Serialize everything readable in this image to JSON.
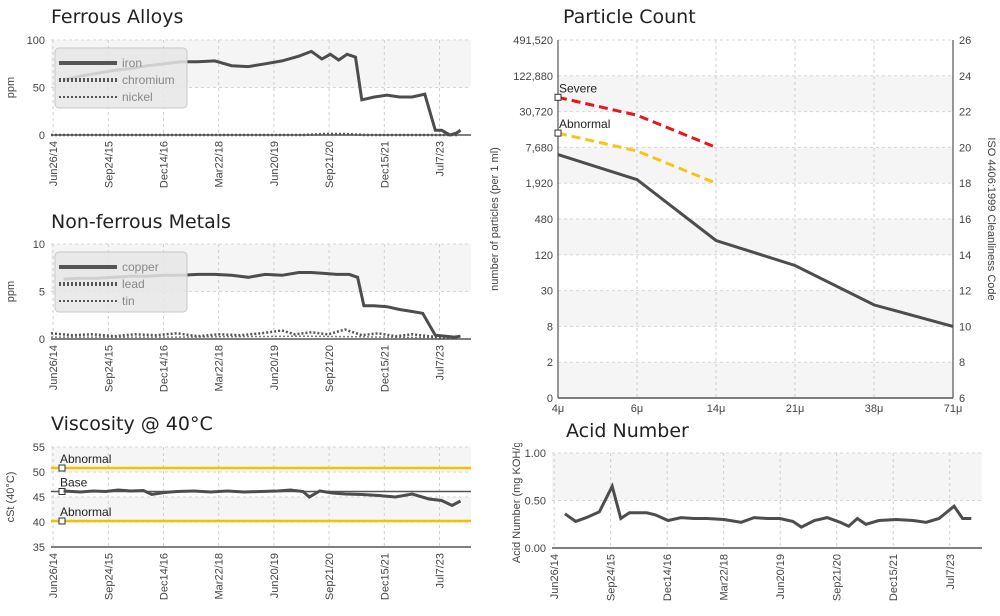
{
  "x_dates": [
    "Jun26/14",
    "Sep24/15",
    "Dec14/16",
    "Mar22/18",
    "Jun20/19",
    "Sep21/20",
    "Dec15/21",
    "Jul7/23"
  ],
  "chart_data": [
    {
      "type": "line",
      "title": "Ferrous Alloys",
      "ylabel": "ppm",
      "ylim": [
        0,
        100
      ],
      "yticks": [
        "0",
        "50",
        "100"
      ],
      "legend": "top-left",
      "series": [
        {
          "name": "iron",
          "values": [
            [
              0.03,
              58
            ],
            [
              0.07,
              62
            ],
            [
              0.11,
              65
            ],
            [
              0.15,
              68
            ],
            [
              0.19,
              70
            ],
            [
              0.23,
              73
            ],
            [
              0.27,
              75
            ],
            [
              0.31,
              77
            ],
            [
              0.35,
              77
            ],
            [
              0.39,
              78
            ],
            [
              0.43,
              73
            ],
            [
              0.47,
              72
            ],
            [
              0.51,
              75
            ],
            [
              0.55,
              78
            ],
            [
              0.59,
              83
            ],
            [
              0.62,
              88
            ],
            [
              0.645,
              80
            ],
            [
              0.665,
              85
            ],
            [
              0.685,
              79
            ],
            [
              0.705,
              85
            ],
            [
              0.725,
              82
            ],
            [
              0.74,
              37
            ],
            [
              0.77,
              40
            ],
            [
              0.8,
              42
            ],
            [
              0.83,
              40
            ],
            [
              0.86,
              40
            ],
            [
              0.89,
              43
            ],
            [
              0.915,
              5
            ],
            [
              0.93,
              5
            ],
            [
              0.95,
              0
            ],
            [
              0.965,
              2
            ],
            [
              0.975,
              5
            ]
          ]
        },
        {
          "name": "chromium",
          "values": [
            [
              0.0,
              0
            ],
            [
              0.6,
              0
            ],
            [
              0.65,
              1
            ],
            [
              0.7,
              1
            ],
            [
              0.75,
              0
            ],
            [
              0.97,
              0
            ]
          ]
        },
        {
          "name": "nickel",
          "values": [
            [
              0.0,
              0
            ],
            [
              0.97,
              0
            ]
          ]
        }
      ]
    },
    {
      "type": "line",
      "title": "Non-ferrous Metals",
      "ylabel": "ppm",
      "ylim": [
        0,
        10
      ],
      "yticks": [
        "0",
        "5",
        "10"
      ],
      "legend": "top-left",
      "series": [
        {
          "name": "copper",
          "values": [
            [
              0.03,
              6.3
            ],
            [
              0.07,
              6.4
            ],
            [
              0.11,
              6.4
            ],
            [
              0.15,
              6.5
            ],
            [
              0.19,
              6.6
            ],
            [
              0.23,
              6.6
            ],
            [
              0.27,
              6.7
            ],
            [
              0.31,
              6.7
            ],
            [
              0.35,
              6.8
            ],
            [
              0.39,
              6.8
            ],
            [
              0.43,
              6.7
            ],
            [
              0.47,
              6.5
            ],
            [
              0.51,
              6.8
            ],
            [
              0.55,
              6.7
            ],
            [
              0.59,
              7.0
            ],
            [
              0.62,
              7.0
            ],
            [
              0.65,
              6.9
            ],
            [
              0.68,
              6.8
            ],
            [
              0.71,
              6.8
            ],
            [
              0.73,
              6.5
            ],
            [
              0.745,
              3.5
            ],
            [
              0.77,
              3.5
            ],
            [
              0.8,
              3.4
            ],
            [
              0.83,
              3.1
            ],
            [
              0.86,
              2.9
            ],
            [
              0.885,
              2.7
            ],
            [
              0.915,
              0.4
            ],
            [
              0.94,
              0.3
            ],
            [
              0.96,
              0.2
            ],
            [
              0.975,
              0.3
            ]
          ]
        },
        {
          "name": "lead",
          "values": [
            [
              0.0,
              0.6
            ],
            [
              0.05,
              0.4
            ],
            [
              0.1,
              0.5
            ],
            [
              0.15,
              0.3
            ],
            [
              0.2,
              0.5
            ],
            [
              0.25,
              0.4
            ],
            [
              0.3,
              0.6
            ],
            [
              0.35,
              0.3
            ],
            [
              0.4,
              0.5
            ],
            [
              0.45,
              0.4
            ],
            [
              0.5,
              0.6
            ],
            [
              0.55,
              0.9
            ],
            [
              0.58,
              0.5
            ],
            [
              0.62,
              0.7
            ],
            [
              0.66,
              0.5
            ],
            [
              0.7,
              1.0
            ],
            [
              0.74,
              0.4
            ],
            [
              0.78,
              0.6
            ],
            [
              0.82,
              0.3
            ],
            [
              0.86,
              0.5
            ],
            [
              0.9,
              0.3
            ],
            [
              0.94,
              0.1
            ],
            [
              0.97,
              0.2
            ]
          ]
        },
        {
          "name": "tin",
          "values": [
            [
              0.0,
              0.2
            ],
            [
              0.3,
              0.2
            ],
            [
              0.6,
              0.3
            ],
            [
              0.8,
              0.2
            ],
            [
              0.97,
              0.1
            ]
          ]
        }
      ]
    },
    {
      "type": "line",
      "title": "Particle Count",
      "ylabel": "number of particles (per 1 ml)",
      "y2label": "ISO 4406:1999 Cleanliness Code",
      "categories": [
        "4μ",
        "6μ",
        "14μ",
        "21μ",
        "38μ",
        "71μ"
      ],
      "yticks": [
        "0",
        "2",
        "8",
        "30",
        "120",
        "480",
        "1,920",
        "7,680",
        "30,720",
        "122,880",
        "491,520"
      ],
      "y2ticks": [
        "6",
        "8",
        "10",
        "12",
        "14",
        "16",
        "18",
        "20",
        "22",
        "24",
        "26"
      ],
      "series": [
        {
          "name": "",
          "values": [
            [
              0,
              6.8
            ],
            [
              1,
              6.1
            ],
            [
              2,
              4.4
            ],
            [
              3,
              3.7
            ],
            [
              4,
              2.6
            ],
            [
              5,
              2.0
            ]
          ]
        },
        {
          "name": "Severe",
          "values": [
            [
              0,
              8.4
            ],
            [
              1,
              7.9
            ],
            [
              2,
              7.0
            ]
          ]
        },
        {
          "name": "Abnormal",
          "values": [
            [
              0,
              7.4
            ],
            [
              1,
              6.9
            ],
            [
              2,
              6.0
            ]
          ]
        }
      ],
      "markers": [
        "Severe",
        "Abnormal"
      ]
    },
    {
      "type": "line",
      "title": "Viscosity @ 40°C",
      "ylabel": "cSt (40°C)",
      "ylim": [
        35,
        55
      ],
      "yticks": [
        "35",
        "40",
        "45",
        "50",
        "55"
      ],
      "limits": [
        {
          "label": "Abnormal",
          "value": 50.8
        },
        {
          "label": "Base",
          "value": 46.1
        },
        {
          "label": "Abnormal",
          "value": 40.2
        }
      ],
      "series": [
        {
          "name": "",
          "values": [
            [
              0.03,
              46.2
            ],
            [
              0.07,
              46.0
            ],
            [
              0.1,
              46.2
            ],
            [
              0.13,
              46.1
            ],
            [
              0.16,
              46.4
            ],
            [
              0.19,
              46.2
            ],
            [
              0.22,
              46.3
            ],
            [
              0.24,
              45.5
            ],
            [
              0.27,
              45.9
            ],
            [
              0.3,
              46.1
            ],
            [
              0.34,
              46.2
            ],
            [
              0.38,
              46.0
            ],
            [
              0.42,
              46.2
            ],
            [
              0.46,
              46.0
            ],
            [
              0.5,
              46.1
            ],
            [
              0.54,
              46.2
            ],
            [
              0.57,
              46.4
            ],
            [
              0.6,
              46.1
            ],
            [
              0.615,
              45.0
            ],
            [
              0.64,
              46.2
            ],
            [
              0.67,
              45.8
            ],
            [
              0.7,
              45.6
            ],
            [
              0.74,
              45.5
            ],
            [
              0.78,
              45.3
            ],
            [
              0.82,
              45.0
            ],
            [
              0.86,
              45.6
            ],
            [
              0.9,
              44.6
            ],
            [
              0.93,
              44.3
            ],
            [
              0.955,
              43.3
            ],
            [
              0.975,
              44.2
            ]
          ]
        }
      ]
    },
    {
      "type": "line",
      "title": "Acid Number",
      "ylabel": "Acid Number (mg KOH/g)",
      "ylim": [
        0,
        1
      ],
      "yticks": [
        "0.00",
        "0.50",
        "1.00"
      ],
      "series": [
        {
          "name": "",
          "values": [
            [
              0.03,
              0.36
            ],
            [
              0.055,
              0.28
            ],
            [
              0.08,
              0.32
            ],
            [
              0.11,
              0.38
            ],
            [
              0.14,
              0.65
            ],
            [
              0.16,
              0.31
            ],
            [
              0.18,
              0.37
            ],
            [
              0.22,
              0.37
            ],
            [
              0.24,
              0.35
            ],
            [
              0.27,
              0.29
            ],
            [
              0.3,
              0.32
            ],
            [
              0.33,
              0.31
            ],
            [
              0.36,
              0.31
            ],
            [
              0.4,
              0.3
            ],
            [
              0.44,
              0.27
            ],
            [
              0.47,
              0.32
            ],
            [
              0.5,
              0.31
            ],
            [
              0.53,
              0.31
            ],
            [
              0.56,
              0.28
            ],
            [
              0.58,
              0.22
            ],
            [
              0.61,
              0.29
            ],
            [
              0.64,
              0.32
            ],
            [
              0.67,
              0.27
            ],
            [
              0.69,
              0.23
            ],
            [
              0.71,
              0.31
            ],
            [
              0.73,
              0.25
            ],
            [
              0.76,
              0.29
            ],
            [
              0.8,
              0.3
            ],
            [
              0.84,
              0.29
            ],
            [
              0.87,
              0.27
            ],
            [
              0.9,
              0.31
            ],
            [
              0.935,
              0.44
            ],
            [
              0.955,
              0.31
            ],
            [
              0.975,
              0.31
            ]
          ]
        }
      ]
    }
  ]
}
